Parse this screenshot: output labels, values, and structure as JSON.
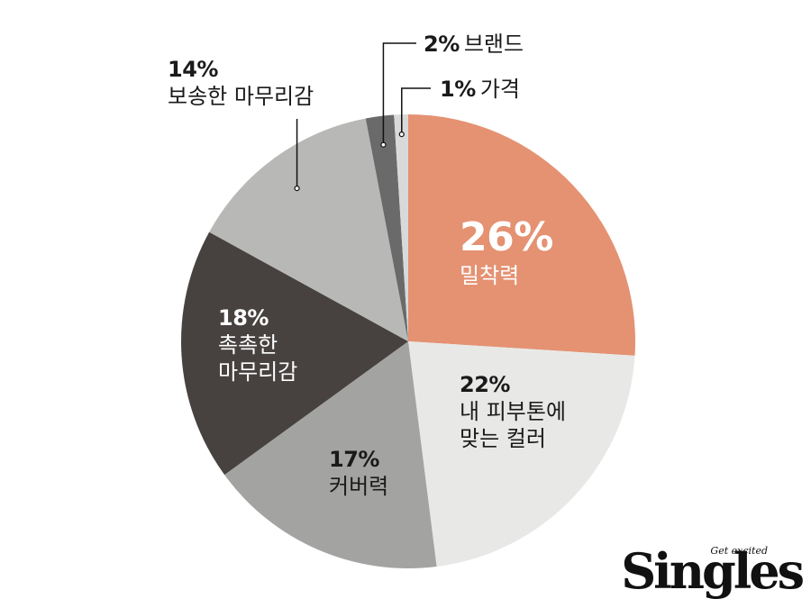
{
  "chart_data": {
    "type": "pie",
    "slices": [
      {
        "name": "밀착력",
        "percent": "26%",
        "value": 26,
        "color": "#e49272"
      },
      {
        "name": "내 피부톤에 맞는 컬러",
        "line1": "내 피부톤에",
        "line2": "맞는 컬러",
        "percent": "22%",
        "value": 22,
        "color": "#e8e9e7"
      },
      {
        "name": "커버력",
        "percent": "17%",
        "value": 17,
        "color": "#a3a4a2"
      },
      {
        "name": "촉촉한 마무리감",
        "line1": "촉촉한",
        "line2": "마무리감",
        "percent": "18%",
        "value": 18,
        "color": "#474240"
      },
      {
        "name": "보송한 마무리감",
        "percent": "14%",
        "value": 14,
        "color": "#b8b9b7"
      },
      {
        "name": "브랜드",
        "percent": "2%",
        "value": 2,
        "color": "#6a6a6a"
      },
      {
        "name": "가격",
        "percent": "1%",
        "value": 1,
        "color": "#d9d9d9"
      }
    ]
  },
  "brand": {
    "tagline": "Get excited",
    "wordmark": "Singles"
  }
}
